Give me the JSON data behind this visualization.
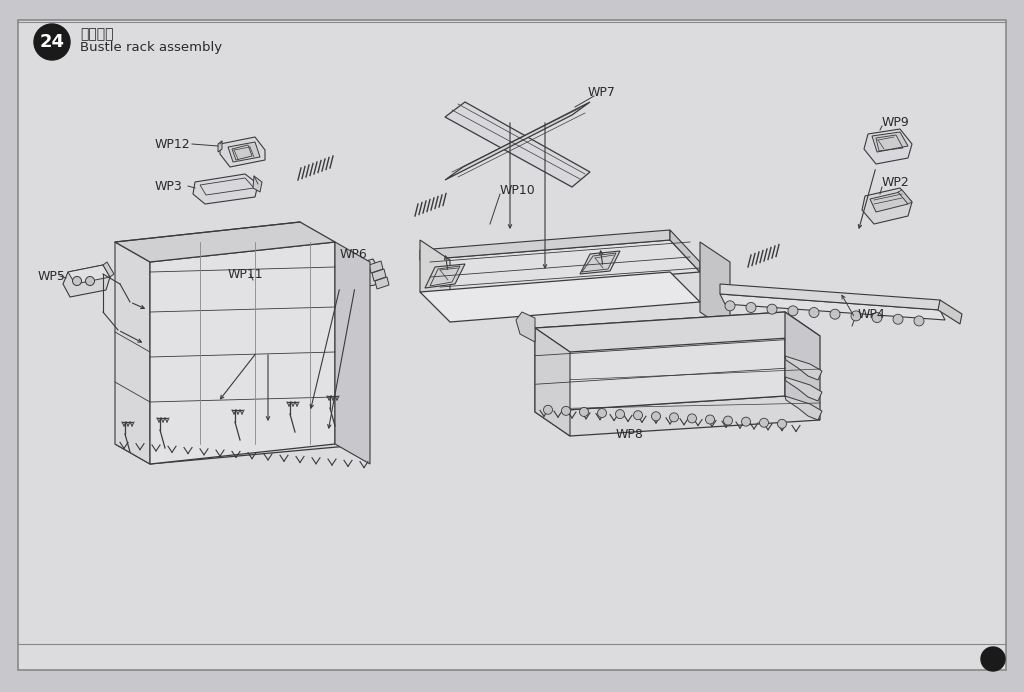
{
  "bg_color": "#c8c8cc",
  "page_color": "#d4d4d8",
  "inner_color": "#dcdcdf",
  "line_color": "#3a3a3a",
  "text_color": "#2a2a2a",
  "title_cn": "栅栏组装",
  "title_en": "Bustle rack assembly",
  "step_number": "24",
  "font_size_label": 9,
  "font_size_title_cn": 10,
  "font_size_title_en": 9.5,
  "font_size_step": 13,
  "figsize": [
    10.24,
    6.92
  ],
  "dpi": 100
}
